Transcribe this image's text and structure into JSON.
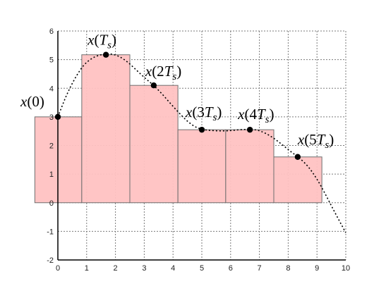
{
  "chart_data": {
    "type": "bar",
    "title": "",
    "xlabel": "",
    "ylabel": "",
    "xlim": [
      0,
      10
    ],
    "ylim": [
      -2,
      6
    ],
    "x_ticks": [
      "0",
      "1",
      "2",
      "3",
      "4",
      "5",
      "6",
      "7",
      "8",
      "9",
      "10"
    ],
    "y_ticks": [
      "-2",
      "-1",
      "0",
      "1",
      "2",
      "3",
      "4",
      "5",
      "6"
    ],
    "grid": true,
    "bars": [
      {
        "x_start": -0.8,
        "x_end": 0.83,
        "value": 3.0
      },
      {
        "x_start": 0.83,
        "x_end": 2.5,
        "value": 5.17
      },
      {
        "x_start": 2.5,
        "x_end": 4.17,
        "value": 4.1
      },
      {
        "x_start": 4.17,
        "x_end": 5.83,
        "value": 2.55
      },
      {
        "x_start": 5.83,
        "x_end": 7.5,
        "value": 2.55
      },
      {
        "x_start": 7.5,
        "x_end": 9.17,
        "value": 1.6
      }
    ],
    "samples": [
      {
        "label": "x(0)",
        "x": 0.0,
        "y": 3.0
      },
      {
        "label": "x(T_s)",
        "x": 1.67,
        "y": 5.17
      },
      {
        "label": "x(2T_s)",
        "x": 3.33,
        "y": 4.1
      },
      {
        "label": "x(3T_s)",
        "x": 5.0,
        "y": 2.55
      },
      {
        "label": "x(4T_s)",
        "x": 6.67,
        "y": 2.55
      },
      {
        "label": "x(5T_s)",
        "x": 8.33,
        "y": 1.6
      }
    ],
    "curve": {
      "style": "dotted",
      "points": [
        [
          0.0,
          3.0
        ],
        [
          0.3,
          3.75
        ],
        [
          0.6,
          4.35
        ],
        [
          0.9,
          4.8
        ],
        [
          1.2,
          5.05
        ],
        [
          1.5,
          5.17
        ],
        [
          1.8,
          5.2
        ],
        [
          2.1,
          5.12
        ],
        [
          2.4,
          4.93
        ],
        [
          2.7,
          4.66
        ],
        [
          3.0,
          4.38
        ],
        [
          3.3,
          4.12
        ],
        [
          3.6,
          3.82
        ],
        [
          3.9,
          3.48
        ],
        [
          4.2,
          3.15
        ],
        [
          4.5,
          2.85
        ],
        [
          4.8,
          2.64
        ],
        [
          5.1,
          2.55
        ],
        [
          5.4,
          2.52
        ],
        [
          5.7,
          2.51
        ],
        [
          6.0,
          2.52
        ],
        [
          6.3,
          2.55
        ],
        [
          6.6,
          2.56
        ],
        [
          6.9,
          2.54
        ],
        [
          7.2,
          2.43
        ],
        [
          7.5,
          2.25
        ],
        [
          7.8,
          2.02
        ],
        [
          8.1,
          1.78
        ],
        [
          8.4,
          1.55
        ],
        [
          8.7,
          1.25
        ],
        [
          9.0,
          0.82
        ],
        [
          9.3,
          0.28
        ],
        [
          9.6,
          -0.3
        ],
        [
          10.0,
          -1.05
        ]
      ]
    },
    "colors": {
      "bar_fill": "#ffc2c2",
      "bar_stroke": "#6e6e6e",
      "point": "#000000",
      "curve": "#000000",
      "grid": "#7a7a7a"
    }
  }
}
